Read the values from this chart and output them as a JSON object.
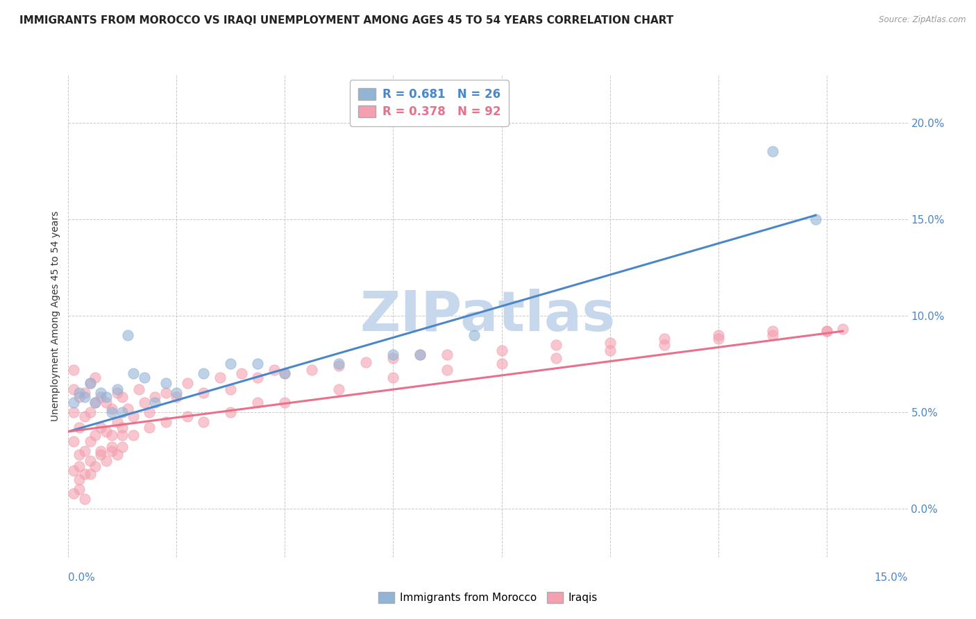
{
  "title": "IMMIGRANTS FROM MOROCCO VS IRAQI UNEMPLOYMENT AMONG AGES 45 TO 54 YEARS CORRELATION CHART",
  "source": "Source: ZipAtlas.com",
  "ylabel": "Unemployment Among Ages 45 to 54 years",
  "xlim": [
    0.0,
    0.155
  ],
  "ylim": [
    -0.025,
    0.225
  ],
  "yticks": [
    0.0,
    0.05,
    0.1,
    0.15,
    0.2
  ],
  "ytick_labels": [
    "0.0%",
    "5.0%",
    "10.0%",
    "15.0%",
    "20.0%"
  ],
  "xtick_left_label": "0.0%",
  "xtick_right_label": "15.0%",
  "legend1_r": "0.681",
  "legend1_n": "26",
  "legend2_r": "0.378",
  "legend2_n": "92",
  "blue_color": "#92b4d7",
  "pink_color": "#f4a0b0",
  "blue_line_color": "#4a86c8",
  "pink_line_color": "#e8708a",
  "watermark": "ZIPatlas",
  "watermark_color": "#c8d8ec",
  "title_fontsize": 11,
  "axis_label_fontsize": 10,
  "tick_fontsize": 11,
  "legend_fontsize": 12,
  "blue_scatter_x": [
    0.001,
    0.002,
    0.003,
    0.004,
    0.005,
    0.006,
    0.007,
    0.008,
    0.009,
    0.01,
    0.011,
    0.012,
    0.014,
    0.016,
    0.018,
    0.02,
    0.025,
    0.03,
    0.035,
    0.04,
    0.05,
    0.06,
    0.065,
    0.075,
    0.13,
    0.138
  ],
  "blue_scatter_y": [
    0.055,
    0.06,
    0.058,
    0.065,
    0.055,
    0.06,
    0.058,
    0.05,
    0.062,
    0.05,
    0.09,
    0.07,
    0.068,
    0.055,
    0.065,
    0.06,
    0.07,
    0.075,
    0.075,
    0.07,
    0.075,
    0.08,
    0.08,
    0.09,
    0.185,
    0.15
  ],
  "pink_scatter_x": [
    0.001,
    0.001,
    0.001,
    0.001,
    0.002,
    0.002,
    0.002,
    0.003,
    0.003,
    0.003,
    0.004,
    0.004,
    0.004,
    0.005,
    0.005,
    0.005,
    0.006,
    0.006,
    0.007,
    0.007,
    0.008,
    0.008,
    0.009,
    0.009,
    0.01,
    0.01,
    0.011,
    0.012,
    0.013,
    0.014,
    0.015,
    0.016,
    0.018,
    0.02,
    0.022,
    0.025,
    0.028,
    0.03,
    0.032,
    0.035,
    0.038,
    0.04,
    0.045,
    0.05,
    0.055,
    0.06,
    0.065,
    0.07,
    0.08,
    0.09,
    0.1,
    0.11,
    0.12,
    0.13,
    0.14,
    0.143,
    0.001,
    0.001,
    0.002,
    0.002,
    0.003,
    0.003,
    0.004,
    0.005,
    0.006,
    0.007,
    0.008,
    0.009,
    0.01,
    0.012,
    0.015,
    0.018,
    0.022,
    0.025,
    0.03,
    0.035,
    0.04,
    0.05,
    0.06,
    0.07,
    0.08,
    0.09,
    0.1,
    0.11,
    0.12,
    0.13,
    0.14,
    0.002,
    0.004,
    0.006,
    0.008,
    0.01
  ],
  "pink_scatter_y": [
    0.035,
    0.05,
    0.062,
    0.072,
    0.028,
    0.042,
    0.058,
    0.03,
    0.048,
    0.06,
    0.035,
    0.05,
    0.065,
    0.038,
    0.055,
    0.068,
    0.042,
    0.058,
    0.04,
    0.055,
    0.038,
    0.052,
    0.045,
    0.06,
    0.042,
    0.058,
    0.052,
    0.048,
    0.062,
    0.055,
    0.05,
    0.058,
    0.06,
    0.058,
    0.065,
    0.06,
    0.068,
    0.062,
    0.07,
    0.068,
    0.072,
    0.07,
    0.072,
    0.074,
    0.076,
    0.078,
    0.08,
    0.08,
    0.082,
    0.085,
    0.086,
    0.088,
    0.09,
    0.09,
    0.092,
    0.093,
    0.02,
    0.008,
    0.022,
    0.01,
    0.018,
    0.005,
    0.025,
    0.022,
    0.028,
    0.025,
    0.03,
    0.028,
    0.032,
    0.038,
    0.042,
    0.045,
    0.048,
    0.045,
    0.05,
    0.055,
    0.055,
    0.062,
    0.068,
    0.072,
    0.075,
    0.078,
    0.082,
    0.085,
    0.088,
    0.092,
    0.092,
    0.015,
    0.018,
    0.03,
    0.032,
    0.038
  ],
  "blue_trendline_x": [
    0.0,
    0.138
  ],
  "blue_trendline_y": [
    0.04,
    0.152
  ],
  "pink_trendline_x": [
    0.0,
    0.143
  ],
  "pink_trendline_y": [
    0.04,
    0.092
  ]
}
